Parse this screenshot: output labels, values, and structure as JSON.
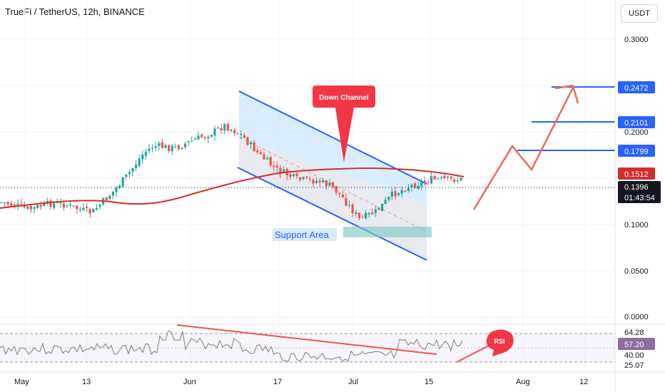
{
  "header": {
    "symbol_title": "TrueFi / TetherUS, 12h, BINANCE",
    "currency": "USDT"
  },
  "annotations": {
    "down_channel": "Down Channel",
    "support_area": "Support Area",
    "rsi": "RSI"
  },
  "price_axis": {
    "ticks": [
      "0.3000",
      "0.2000",
      "0.1000",
      "0.0500",
      "0.0000"
    ],
    "target_labels": [
      "0.2472",
      "0.2101",
      "0.1799"
    ],
    "ma_value": "0.1512",
    "last_price": "0.1396",
    "countdown": "01:43:54"
  },
  "rsi_axis": {
    "ticks": [
      "64.28",
      "40.00",
      "25.07"
    ],
    "current": "57.20"
  },
  "time_axis": [
    "May",
    "13",
    "Jun",
    "17",
    "Jul",
    "15",
    "Aug",
    "12"
  ],
  "colors": {
    "up": "#26a69a",
    "down": "#ef5350",
    "ma": "#d32f2f",
    "channel": "#2962ff",
    "target": "#2962ff",
    "projection": "#f06a55",
    "rsi": "#7e7e7e",
    "rsi_trend": "#ef5350",
    "last_price": "#131722",
    "rsi_badge": "#8c6d9e"
  },
  "chart_data": {
    "type": "candlestick",
    "title": "TrueFi / TetherUS, 12h, BINANCE",
    "x": [
      "May",
      "13",
      "Jun",
      "17",
      "Jul",
      "15",
      "Aug",
      "12"
    ],
    "y_ticks": [
      0.3,
      0.2,
      0.1,
      0.05,
      0.0
    ],
    "close_path": [
      [
        "May 1",
        0.118
      ],
      [
        "May 6",
        0.112
      ],
      [
        "May 10",
        0.117
      ],
      [
        "May 13",
        0.116
      ],
      [
        "May 18",
        0.109
      ],
      [
        "May 22",
        0.127
      ],
      [
        "May 25",
        0.145
      ],
      [
        "May 28",
        0.17
      ],
      [
        "May 30",
        0.18
      ],
      [
        "Jun 2",
        0.177
      ],
      [
        "Jun 6",
        0.19
      ],
      [
        "Jun 9",
        0.2
      ],
      [
        "Jun 11",
        0.21
      ],
      [
        "Jun 14",
        0.195
      ],
      [
        "Jun 17",
        0.17
      ],
      [
        "Jun 20",
        0.152
      ],
      [
        "Jun 24",
        0.14
      ],
      [
        "Jun 28",
        0.138
      ],
      [
        "Jul 1",
        0.133
      ],
      [
        "Jul 3",
        0.122
      ],
      [
        "Jul 6",
        0.104
      ],
      [
        "Jul 9",
        0.11
      ],
      [
        "Jul 12",
        0.125
      ],
      [
        "Jul 15",
        0.133
      ],
      [
        "Jul 19",
        0.14
      ]
    ],
    "last_price": 0.1396,
    "moving_average_last": 0.1512,
    "targets": [
      0.2472,
      0.2101,
      0.1799
    ],
    "rsi": {
      "current": 57.2,
      "levels": [
        64.28,
        40.0,
        25.07
      ]
    }
  }
}
